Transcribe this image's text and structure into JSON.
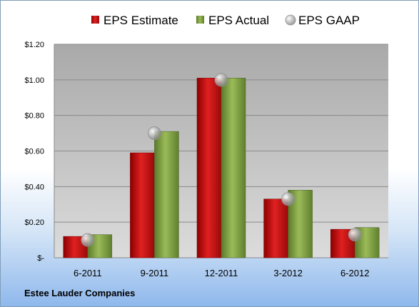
{
  "company": "Estee Lauder Companies",
  "chart_data": {
    "type": "bar",
    "categories": [
      "6-2011",
      "9-2011",
      "12-2011",
      "3-2012",
      "6-2012"
    ],
    "series": [
      {
        "name": "EPS Estimate",
        "type": "bar",
        "color": "#c00000",
        "values": [
          0.12,
          0.59,
          1.01,
          0.33,
          0.16
        ]
      },
      {
        "name": "EPS Actual",
        "type": "bar",
        "color": "#77933c",
        "values": [
          0.13,
          0.71,
          1.01,
          0.38,
          0.17
        ]
      },
      {
        "name": "EPS GAAP",
        "type": "marker",
        "color": "#a6a6a6",
        "values": [
          0.1,
          0.7,
          1.0,
          0.33,
          0.13
        ]
      }
    ],
    "ylim": [
      0,
      1.2
    ],
    "yticks": [
      0,
      0.2,
      0.4,
      0.6,
      0.8,
      1.0,
      1.2
    ],
    "ytick_labels": [
      "$-",
      "$0.20",
      "$0.40",
      "$0.60",
      "$0.80",
      "$1.00",
      "$1.20"
    ],
    "legend_position": "top",
    "grid": true
  }
}
